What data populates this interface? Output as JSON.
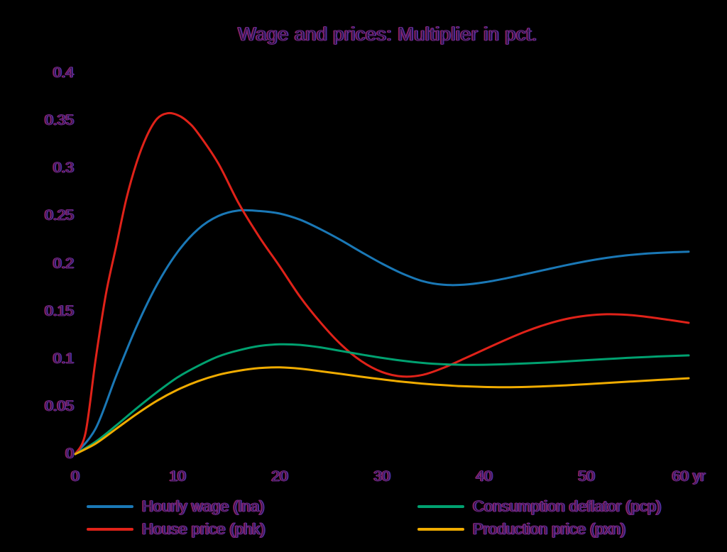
{
  "chart_data": {
    "type": "line",
    "title": "Wage and prices: Multiplier in pct.",
    "xlabel": "yr",
    "ylabel": "",
    "xlim": [
      0,
      60
    ],
    "ylim": [
      0,
      0.4
    ],
    "grid": false,
    "legend_position": "bottom",
    "x_tick_labels": [
      "0",
      "10",
      "20",
      "30",
      "40",
      "50",
      "60 yr"
    ],
    "x_tick_values": [
      0,
      10,
      20,
      30,
      40,
      50,
      60
    ],
    "y_tick_labels": [
      "0",
      "0.05",
      "0.1",
      "0.15",
      "0.2",
      "0.25",
      "0.3",
      "0.35",
      "0.4"
    ],
    "y_tick_values": [
      0,
      0.05,
      0.1,
      0.15,
      0.2,
      0.25,
      0.3,
      0.35,
      0.4
    ],
    "series": [
      {
        "name": "Hourly wage (lna)",
        "color": "#1a78b6",
        "points": [
          [
            0,
            0
          ],
          [
            2,
            0.027
          ],
          [
            4,
            0.082
          ],
          [
            6,
            0.134
          ],
          [
            8,
            0.178
          ],
          [
            10,
            0.212
          ],
          [
            12,
            0.236
          ],
          [
            14,
            0.25
          ],
          [
            16,
            0.2558
          ],
          [
            18,
            0.2552
          ],
          [
            20,
            0.2525
          ],
          [
            22,
            0.246
          ],
          [
            24,
            0.236
          ],
          [
            26,
            0.2245
          ],
          [
            28,
            0.212
          ],
          [
            30,
            0.2
          ],
          [
            32,
            0.1895
          ],
          [
            34,
            0.1815
          ],
          [
            36,
            0.1778
          ],
          [
            38,
            0.1778
          ],
          [
            40,
            0.1803
          ],
          [
            42,
            0.1842
          ],
          [
            44,
            0.1888
          ],
          [
            46,
            0.1936
          ],
          [
            48,
            0.1983
          ],
          [
            50,
            0.2025
          ],
          [
            52,
            0.206
          ],
          [
            54,
            0.2087
          ],
          [
            56,
            0.2106
          ],
          [
            58,
            0.2118
          ],
          [
            60,
            0.2125
          ]
        ]
      },
      {
        "name": "House price (phk)",
        "color": "#e02219",
        "points": [
          [
            0,
            0
          ],
          [
            1,
            0.022
          ],
          [
            2,
            0.1
          ],
          [
            3,
            0.168
          ],
          [
            4,
            0.218
          ],
          [
            5,
            0.268
          ],
          [
            6,
            0.306
          ],
          [
            7,
            0.334
          ],
          [
            8,
            0.352
          ],
          [
            9,
            0.3578
          ],
          [
            10,
            0.356
          ],
          [
            11,
            0.349
          ],
          [
            12,
            0.337
          ],
          [
            14,
            0.305
          ],
          [
            16,
            0.263
          ],
          [
            18,
            0.228
          ],
          [
            20,
            0.197
          ],
          [
            22,
            0.165
          ],
          [
            24,
            0.138
          ],
          [
            26,
            0.115
          ],
          [
            28,
            0.0975
          ],
          [
            30,
            0.0862
          ],
          [
            32,
            0.0815
          ],
          [
            34,
            0.0832
          ],
          [
            36,
            0.0905
          ],
          [
            38,
            0.1
          ],
          [
            40,
            0.1098
          ],
          [
            42,
            0.1195
          ],
          [
            44,
            0.1285
          ],
          [
            46,
            0.136
          ],
          [
            48,
            0.1418
          ],
          [
            50,
            0.1453
          ],
          [
            52,
            0.1468
          ],
          [
            54,
            0.1462
          ],
          [
            56,
            0.144
          ],
          [
            58,
            0.141
          ],
          [
            60,
            0.1378
          ]
        ]
      },
      {
        "name": "Consumption deflator (pcp)",
        "color": "#00a170",
        "points": [
          [
            0,
            0
          ],
          [
            2,
            0.013
          ],
          [
            4,
            0.03
          ],
          [
            6,
            0.048
          ],
          [
            8,
            0.065
          ],
          [
            10,
            0.0805
          ],
          [
            12,
            0.0925
          ],
          [
            14,
            0.1025
          ],
          [
            16,
            0.109
          ],
          [
            18,
            0.1135
          ],
          [
            20,
            0.1152
          ],
          [
            22,
            0.1146
          ],
          [
            24,
            0.112
          ],
          [
            26,
            0.1082
          ],
          [
            28,
            0.1045
          ],
          [
            30,
            0.101
          ],
          [
            32,
            0.098
          ],
          [
            34,
            0.0957
          ],
          [
            36,
            0.0943
          ],
          [
            38,
            0.0937
          ],
          [
            40,
            0.0938
          ],
          [
            42,
            0.0943
          ],
          [
            44,
            0.0951
          ],
          [
            46,
            0.0961
          ],
          [
            48,
            0.0973
          ],
          [
            50,
            0.0986
          ],
          [
            52,
            0.0998
          ],
          [
            54,
            0.101
          ],
          [
            56,
            0.102
          ],
          [
            58,
            0.1029
          ],
          [
            60,
            0.1036
          ]
        ]
      },
      {
        "name": "Production price (pxn)",
        "color": "#efab00",
        "points": [
          [
            0,
            0
          ],
          [
            2,
            0.011
          ],
          [
            4,
            0.0265
          ],
          [
            6,
            0.042
          ],
          [
            8,
            0.056
          ],
          [
            10,
            0.0675
          ],
          [
            12,
            0.0765
          ],
          [
            14,
            0.0832
          ],
          [
            16,
            0.0875
          ],
          [
            18,
            0.0903
          ],
          [
            20,
            0.091
          ],
          [
            22,
            0.0897
          ],
          [
            24,
            0.087
          ],
          [
            26,
            0.0842
          ],
          [
            28,
            0.0812
          ],
          [
            30,
            0.0785
          ],
          [
            32,
            0.076
          ],
          [
            34,
            0.074
          ],
          [
            36,
            0.0724
          ],
          [
            38,
            0.0712
          ],
          [
            40,
            0.0705
          ],
          [
            42,
            0.0702
          ],
          [
            44,
            0.0705
          ],
          [
            46,
            0.0712
          ],
          [
            48,
            0.0722
          ],
          [
            50,
            0.0734
          ],
          [
            52,
            0.0747
          ],
          [
            54,
            0.076
          ],
          [
            56,
            0.0772
          ],
          [
            58,
            0.0784
          ],
          [
            60,
            0.0796
          ]
        ]
      }
    ]
  }
}
